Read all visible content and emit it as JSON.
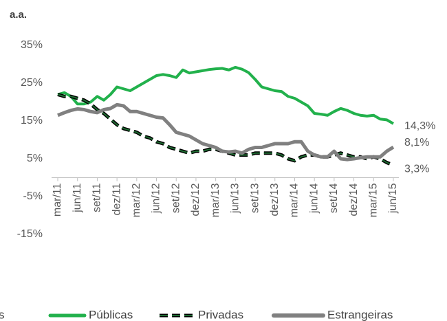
{
  "chart_data": {
    "type": "line",
    "title": "a.a.",
    "legend_fragment": "s",
    "categories": [
      "mar/11",
      null,
      null,
      "jun/11",
      null,
      null,
      "set/11",
      null,
      null,
      "dez/11",
      null,
      null,
      "mar/12",
      null,
      null,
      "jun/12",
      null,
      null,
      "set/12",
      null,
      null,
      "dez/12",
      null,
      null,
      "mar/13",
      null,
      null,
      "jun/13",
      null,
      null,
      "set/13",
      null,
      null,
      "dez/13",
      null,
      null,
      "mar/14",
      null,
      null,
      "jun/14",
      null,
      null,
      "set/14",
      null,
      null,
      "dez/14",
      null,
      null,
      "mar/15",
      null,
      null,
      "jun/15"
    ],
    "ylim": [
      -15,
      35
    ],
    "yticks": [
      {
        "value": -15,
        "label": "-15%"
      },
      {
        "value": -5,
        "label": "-5%"
      },
      {
        "value": 5,
        "label": "5%"
      },
      {
        "value": 15,
        "label": "15%"
      },
      {
        "value": 25,
        "label": "25%"
      },
      {
        "value": 35,
        "label": "35%"
      }
    ],
    "grid": false,
    "legend": "bottom",
    "series": [
      {
        "name": "Públicas",
        "color": "#22b14c",
        "dashed": false,
        "values": [
          22,
          22.5,
          21.5,
          19.5,
          19.5,
          20,
          21.5,
          20.5,
          22,
          24,
          23.5,
          23,
          24,
          25,
          26,
          27,
          27.3,
          27,
          26.5,
          28.5,
          27.7,
          28,
          28.3,
          28.6,
          28.8,
          28.9,
          28.5,
          29.2,
          28.7,
          27.8,
          26,
          24,
          23.5,
          23,
          22.8,
          21.5,
          21,
          20,
          19,
          17,
          16.8,
          16.5,
          17.5,
          18.3,
          17.8,
          17,
          16.5,
          16.3,
          16.5,
          15.5,
          15.3,
          14.3
        ],
        "value_labels": [
          null,
          null,
          null,
          null,
          null,
          null,
          null,
          null,
          null,
          null,
          null,
          null,
          null,
          null,
          null,
          null,
          null,
          null,
          null,
          null,
          null,
          null,
          null,
          null,
          null,
          null,
          null,
          null,
          null,
          null,
          null,
          null,
          null,
          null,
          null,
          null,
          null,
          null,
          null,
          null,
          null,
          null,
          null,
          null,
          null,
          null,
          null,
          null,
          null,
          null,
          null,
          "14,3%"
        ]
      },
      {
        "name": "Privadas",
        "color": "#1e6b32",
        "dashed": true,
        "values": [
          22,
          21.5,
          21.5,
          21,
          20.5,
          19.5,
          18,
          17,
          15.5,
          14,
          13,
          12.5,
          12,
          11,
          10.5,
          9.5,
          9,
          8,
          7.5,
          7,
          6.5,
          7,
          7,
          7.5,
          7.5,
          7,
          6.5,
          6,
          6,
          6,
          6.5,
          6.5,
          6.5,
          6.5,
          6,
          5,
          4.5,
          5.5,
          6,
          6,
          5.5,
          5.5,
          6,
          6.5,
          6,
          5.5,
          5.5,
          5,
          5.5,
          5,
          4,
          3.3
        ],
        "value_labels": [
          null,
          null,
          null,
          null,
          null,
          null,
          null,
          null,
          null,
          null,
          null,
          null,
          null,
          null,
          null,
          null,
          null,
          null,
          null,
          null,
          null,
          null,
          null,
          null,
          null,
          null,
          null,
          null,
          null,
          null,
          null,
          null,
          null,
          null,
          null,
          null,
          null,
          null,
          null,
          null,
          null,
          null,
          null,
          null,
          null,
          null,
          null,
          null,
          null,
          null,
          null,
          "3,3%"
        ]
      },
      {
        "name": "Estrangeiras",
        "color": "#808080",
        "dashed": false,
        "values": [
          16.5,
          17.2,
          17.8,
          18.2,
          18,
          17.5,
          17.2,
          18,
          18.3,
          19.3,
          19,
          17.5,
          17.5,
          17,
          16.5,
          16,
          15.8,
          14,
          12,
          11.5,
          11,
          10,
          9,
          8.5,
          8,
          7,
          6.8,
          7,
          6.5,
          7.5,
          8,
          8,
          8.5,
          9,
          9,
          9,
          9.5,
          9.5,
          7,
          6,
          5.5,
          5.5,
          7,
          5,
          4.8,
          5,
          5.3,
          5.5,
          5.5,
          5.5,
          7,
          8.1
        ],
        "value_labels": [
          null,
          null,
          null,
          null,
          null,
          null,
          null,
          null,
          null,
          null,
          null,
          null,
          null,
          null,
          null,
          null,
          null,
          null,
          null,
          null,
          null,
          null,
          null,
          null,
          null,
          null,
          null,
          null,
          null,
          null,
          null,
          null,
          null,
          null,
          null,
          null,
          null,
          null,
          null,
          null,
          null,
          null,
          null,
          null,
          null,
          null,
          null,
          null,
          null,
          null,
          null,
          "8,1%"
        ]
      }
    ]
  }
}
